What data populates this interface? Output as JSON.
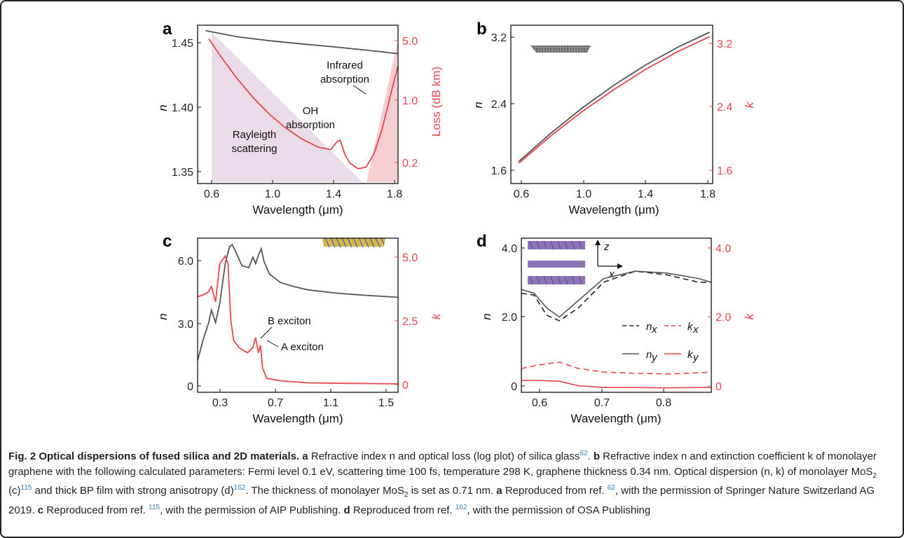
{
  "panels": {
    "a": {
      "label": "a",
      "xlabel": "Wavelength (μm)",
      "ylabel": "n",
      "ylabel_right": "Loss (dB km)",
      "xticks": [
        "0.6",
        "1.0",
        "1.4",
        "1.8"
      ],
      "yticks": [
        "1.35",
        "1.40",
        "1.45"
      ],
      "yticks_right": [
        "0.2",
        "1.0",
        "5.0"
      ],
      "annotations": {
        "rayleigh_1": "Rayleigth",
        "rayleigh_2": "scattering",
        "oh_1": "OH",
        "oh_2": "absorption",
        "ir_1": "Infrared",
        "ir_2": "absorption"
      }
    },
    "b": {
      "label": "b",
      "xlabel": "Wavelength (μm)",
      "ylabel": "n",
      "ylabel_right": "k",
      "xticks": [
        "0.6",
        "1.0",
        "1.4",
        "1.8"
      ],
      "yticks": [
        "1.6",
        "2.4",
        "3.2"
      ],
      "yticks_right": [
        "1.6",
        "2.4",
        "3.2"
      ]
    },
    "c": {
      "label": "c",
      "xlabel": "Wavelength (μm)",
      "ylabel": "n",
      "ylabel_right": "k",
      "xticks": [
        "0.3",
        "0.7",
        "1.1",
        "1.5"
      ],
      "yticks": [
        "0",
        "3.0",
        "6.0"
      ],
      "yticks_right": [
        "0",
        "2.5",
        "5.0"
      ],
      "annotations": {
        "b_exciton": "B exciton",
        "a_exciton": "A exciton"
      }
    },
    "d": {
      "label": "d",
      "xlabel": "Wavelength (μm)",
      "ylabel": "n",
      "ylabel_right": "k",
      "xticks": [
        "0.6",
        "0.7",
        "0.8"
      ],
      "yticks": [
        "0",
        "2.0",
        "4.0"
      ],
      "yticks_right": [
        "0",
        "2.0",
        "4.0"
      ],
      "axis_z": "z",
      "axis_x": "x",
      "legend": {
        "nx": "n",
        "nx_sub": "x",
        "kx": "k",
        "kx_sub": "x",
        "ny": "n",
        "ny_sub": "y",
        "ky": "k",
        "ky_sub": "y"
      }
    }
  },
  "chart_data": [
    {
      "type": "line",
      "panel": "a",
      "xlim": [
        0.55,
        1.8
      ],
      "ylim": [
        1.345,
        1.462
      ],
      "series": [
        {
          "axis": "left",
          "color": "#555555",
          "x": [
            0.6,
            0.8,
            1.0,
            1.2,
            1.4,
            1.6,
            1.8
          ],
          "y": [
            1.458,
            1.4534,
            1.4505,
            1.4482,
            1.446,
            1.4436,
            1.441
          ]
        },
        {
          "axis": "right",
          "color": "#e8464c",
          "x": [
            0.62,
            0.7,
            0.8,
            0.9,
            1.0,
            1.1,
            1.2,
            1.3,
            1.38,
            1.42,
            1.44,
            1.47,
            1.5,
            1.55,
            1.6,
            1.65,
            1.7,
            1.75,
            1.8
          ],
          "y": [
            1.452,
            1.438,
            1.422,
            1.408,
            1.396,
            1.386,
            1.378,
            1.372,
            1.37,
            1.376,
            1.377,
            1.366,
            1.36,
            1.356,
            1.357,
            1.367,
            1.385,
            1.409,
            1.432
          ]
        }
      ]
    },
    {
      "type": "line",
      "panel": "b",
      "xlim": [
        0.55,
        1.82
      ],
      "ylim": [
        1.5,
        3.3
      ],
      "series": [
        {
          "axis": "left",
          "color": "#555555",
          "x": [
            0.6,
            0.8,
            1.0,
            1.2,
            1.4,
            1.6,
            1.8
          ],
          "y": [
            1.75,
            2.07,
            2.36,
            2.62,
            2.85,
            3.05,
            3.22
          ]
        },
        {
          "axis": "right",
          "color": "#e8464c",
          "x": [
            0.6,
            0.8,
            1.0,
            1.2,
            1.4,
            1.6,
            1.8
          ],
          "y": [
            1.73,
            2.04,
            2.32,
            2.57,
            2.8,
            3.0,
            3.17
          ]
        }
      ]
    },
    {
      "type": "line",
      "panel": "c",
      "xlim": [
        0.2,
        1.65
      ],
      "ylim_left": [
        -0.3,
        7.0
      ],
      "ylim_right": [
        -0.25,
        5.8
      ],
      "series": [
        {
          "axis": "left",
          "color": "#555555",
          "x": [
            0.2,
            0.24,
            0.28,
            0.3,
            0.33,
            0.36,
            0.4,
            0.43,
            0.45,
            0.48,
            0.52,
            0.57,
            0.6,
            0.62,
            0.64,
            0.66,
            0.68,
            0.72,
            0.8,
            0.9,
            1.0,
            1.2,
            1.4,
            1.65
          ],
          "y": [
            1.2,
            2.2,
            3.0,
            3.6,
            3.0,
            3.9,
            5.8,
            6.6,
            6.7,
            6.3,
            5.7,
            5.6,
            6.1,
            5.8,
            6.2,
            6.5,
            5.9,
            5.3,
            4.9,
            4.7,
            4.55,
            4.4,
            4.3,
            4.2
          ]
        },
        {
          "axis": "right",
          "color": "#e8464c",
          "x": [
            0.2,
            0.25,
            0.28,
            0.3,
            0.33,
            0.36,
            0.4,
            0.42,
            0.44,
            0.46,
            0.5,
            0.56,
            0.6,
            0.62,
            0.64,
            0.655,
            0.67,
            0.7,
            0.8,
            1.0,
            1.3,
            1.65
          ],
          "y": [
            3.5,
            3.6,
            3.7,
            3.9,
            3.3,
            4.8,
            5.1,
            4.8,
            2.6,
            1.8,
            1.5,
            1.3,
            1.5,
            1.9,
            1.3,
            1.6,
            0.7,
            0.3,
            0.2,
            0.12,
            0.1,
            0.08
          ]
        }
      ]
    },
    {
      "type": "line",
      "panel": "d",
      "xlim": [
        0.57,
        0.87
      ],
      "ylim": [
        -0.1,
        4.1
      ],
      "series": [
        {
          "name": "n_x",
          "axis": "left",
          "color": "#222222",
          "dash": true,
          "x": [
            0.57,
            0.59,
            0.61,
            0.63,
            0.66,
            0.7,
            0.75,
            0.8,
            0.85,
            0.87
          ],
          "y": [
            2.6,
            2.55,
            2.0,
            1.85,
            2.2,
            2.9,
            3.2,
            3.1,
            2.9,
            2.9
          ]
        },
        {
          "name": "n_y",
          "axis": "left",
          "color": "#555555",
          "x": [
            0.57,
            0.59,
            0.61,
            0.63,
            0.66,
            0.7,
            0.75,
            0.8,
            0.85,
            0.87
          ],
          "y": [
            2.7,
            2.6,
            2.2,
            1.95,
            2.4,
            3.0,
            3.2,
            3.15,
            3.0,
            2.9
          ]
        },
        {
          "name": "k_x",
          "axis": "right",
          "color": "#e8464c",
          "dash": true,
          "x": [
            0.57,
            0.6,
            0.63,
            0.66,
            0.7,
            0.75,
            0.8,
            0.85,
            0.87
          ],
          "y": [
            0.55,
            0.65,
            0.72,
            0.55,
            0.45,
            0.42,
            0.4,
            0.43,
            0.45
          ]
        },
        {
          "name": "k_y",
          "axis": "right",
          "color": "#e8464c",
          "x": [
            0.57,
            0.6,
            0.63,
            0.66,
            0.7,
            0.75,
            0.8,
            0.85,
            0.87
          ],
          "y": [
            0.22,
            0.22,
            0.2,
            0.08,
            0.03,
            0.03,
            0.02,
            0.03,
            0.03
          ]
        }
      ]
    }
  ],
  "caption": {
    "fig_label": "Fig. 2 Optical dispersions of fused silica and 2D materials.",
    "a_label": "a",
    "a_text": "Refractive index n and optical loss (log plot) of silica glass",
    "a_ref": "62",
    "b_label": "b",
    "b_text": "Refractive index n and extinction coefficient k of monolayer graphene with the following calculated parameters: Fermi level 0.1 eV, scattering time 100 fs, temperature 298 K, graphene thickness 0.34 nm. Optical dispersion (n, k) of monolayer MoS",
    "sub2": "2",
    "c_paren": "(c)",
    "c_ref": "115",
    "bp_text": "and thick BP film with strong anisotropy (d)",
    "d_ref": "162",
    "mos_text": ". The thickness of monolayer MoS",
    "mos_text2": "is set as 0.71 nm.",
    "repro_a_label": "a",
    "repro_a": "Reproduced from ref.",
    "repro_a_ref": "62",
    "repro_a_end": ", with the permission of Springer Nature Switzerland AG 2019.",
    "repro_c_label": "c",
    "repro_c": "Reproduced from ref.",
    "repro_c_ref": "115",
    "repro_c_end": ", with the permission of AIP Publishing.",
    "repro_d_label": "d",
    "repro_d": "Reproduced from ref.",
    "repro_d_ref": "162",
    "repro_d_end": ", with the permission of OSA Publishing"
  },
  "colors": {
    "dark_line": "#555555",
    "red_line": "#e8464c",
    "rayleigh_fill": "#e9dbe8",
    "ir_fill": "#f7cfd2"
  }
}
